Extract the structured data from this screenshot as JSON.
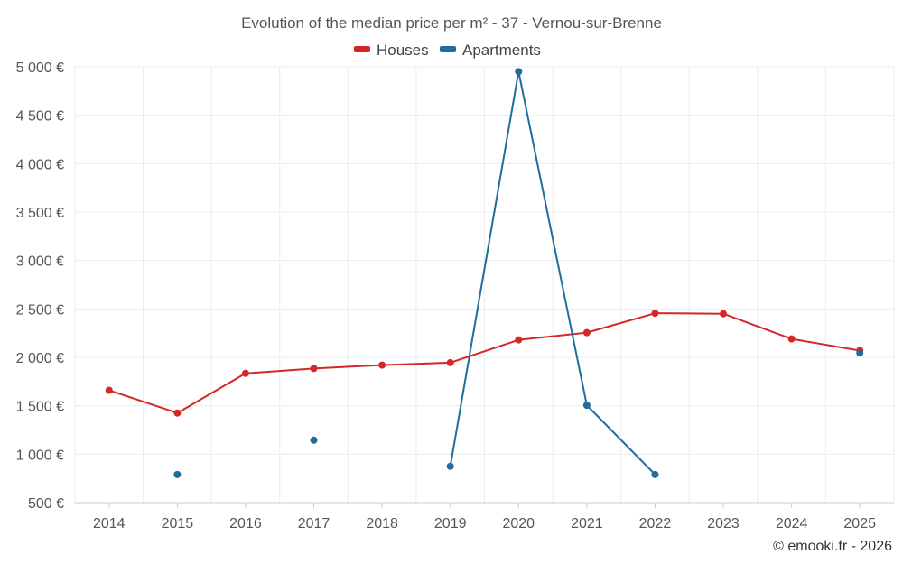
{
  "chart_data": {
    "type": "line",
    "title": "Evolution of the median price per m² - 37 - Vernou-sur-Brenne",
    "categories": [
      "2014",
      "2015",
      "2016",
      "2017",
      "2018",
      "2019",
      "2020",
      "2021",
      "2022",
      "2023",
      "2024",
      "2025"
    ],
    "series": [
      {
        "name": "Houses",
        "color": "#d62728",
        "values": [
          1660,
          1425,
          1835,
          1885,
          1920,
          1945,
          2180,
          2255,
          2455,
          2450,
          2190,
          2070
        ]
      },
      {
        "name": "Apartments",
        "color": "#1f6d9b",
        "values": [
          null,
          790,
          null,
          1145,
          null,
          875,
          4950,
          1505,
          790,
          null,
          null,
          2045
        ]
      }
    ],
    "y_ticks": [
      "5 000 €",
      "4 500 €",
      "4 000 €",
      "3 500 €",
      "3 000 €",
      "2 500 €",
      "2 000 €",
      "1 500 €",
      "1 000 €",
      "500 €"
    ],
    "y_tick_values": [
      5000,
      4500,
      4000,
      3500,
      3000,
      2500,
      2000,
      1500,
      1000,
      500
    ],
    "ylim": [
      500,
      5000
    ],
    "legend_position": "top-center",
    "grid": true
  },
  "credit": "© emooki.fr - 2026"
}
